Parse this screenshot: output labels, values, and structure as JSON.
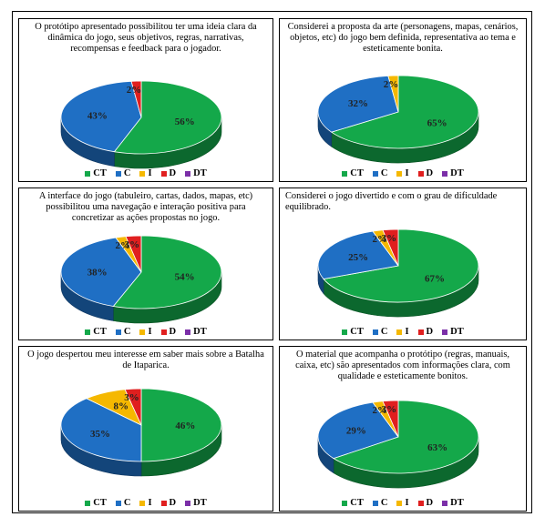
{
  "colors": {
    "CT": "#14a84a",
    "C": "#1f6fc4",
    "I": "#f5b800",
    "D": "#e01f1f",
    "DT": "#7b2fa8"
  },
  "legend": [
    "CT",
    "C",
    "I",
    "D",
    "DT"
  ],
  "chart_data": [
    {
      "type": "pie",
      "title": "O protótipo apresentado possibilitou ter uma ideia clara da dinâmica do jogo, seus objetivos, regras, narrativas, recompensas e feedback para o jogador.",
      "series": [
        {
          "label": "CT",
          "value": 56
        },
        {
          "label": "C",
          "value": 43
        },
        {
          "label": "I",
          "value": 0
        },
        {
          "label": "D",
          "value": 2
        },
        {
          "label": "DT",
          "value": 0
        }
      ],
      "data_labels": [
        "56%",
        "43%",
        "",
        "2%",
        ""
      ],
      "legend": "bottom"
    },
    {
      "type": "pie",
      "title": "Considerei a proposta da arte (personagens, mapas, cenários, objetos, etc) do jogo bem definida, representativa ao tema e esteticamente bonita.",
      "series": [
        {
          "label": "CT",
          "value": 65
        },
        {
          "label": "C",
          "value": 32
        },
        {
          "label": "I",
          "value": 2
        },
        {
          "label": "D",
          "value": 0
        },
        {
          "label": "DT",
          "value": 0
        }
      ],
      "data_labels": [
        "65%",
        "32%",
        "2%",
        "",
        ""
      ],
      "legend": "bottom"
    },
    {
      "type": "pie",
      "title": "A interface do jogo (tabuleiro, cartas, dados, mapas, etc) possibilitou uma navegação e interação positiva para concretizar as ações propostas no jogo.",
      "series": [
        {
          "label": "CT",
          "value": 54
        },
        {
          "label": "C",
          "value": 38
        },
        {
          "label": "I",
          "value": 2
        },
        {
          "label": "D",
          "value": 3
        },
        {
          "label": "DT",
          "value": 0
        }
      ],
      "data_labels": [
        "54%",
        "38%",
        "2%",
        "3%",
        ""
      ],
      "legend": "bottom"
    },
    {
      "type": "pie",
      "title": "Considerei o jogo divertido e com o grau de dificuldade equilibrado.",
      "series": [
        {
          "label": "CT",
          "value": 67
        },
        {
          "label": "C",
          "value": 25
        },
        {
          "label": "I",
          "value": 2
        },
        {
          "label": "D",
          "value": 3
        },
        {
          "label": "DT",
          "value": 0
        }
      ],
      "data_labels": [
        "67%",
        "25%",
        "2%",
        "3%",
        ""
      ],
      "legend": "bottom"
    },
    {
      "type": "pie",
      "title": "O jogo despertou meu interesse em saber mais sobre a Batalha de Itaparica.",
      "series": [
        {
          "label": "CT",
          "value": 46
        },
        {
          "label": "C",
          "value": 35
        },
        {
          "label": "I",
          "value": 8
        },
        {
          "label": "D",
          "value": 3
        },
        {
          "label": "DT",
          "value": 0
        }
      ],
      "data_labels": [
        "46%",
        "35%",
        "8%",
        "3%",
        ""
      ],
      "legend": "bottom"
    },
    {
      "type": "pie",
      "title": "O material que acompanha o protótipo (regras, manuais, caixa, etc) são apresentados com informações clara, com qualidade e esteticamente bonitos.",
      "series": [
        {
          "label": "CT",
          "value": 63
        },
        {
          "label": "C",
          "value": 29
        },
        {
          "label": "I",
          "value": 2
        },
        {
          "label": "D",
          "value": 3
        },
        {
          "label": "DT",
          "value": 0
        }
      ],
      "data_labels": [
        "63%",
        "29%",
        "2%",
        "3%",
        ""
      ],
      "legend": "bottom"
    }
  ]
}
